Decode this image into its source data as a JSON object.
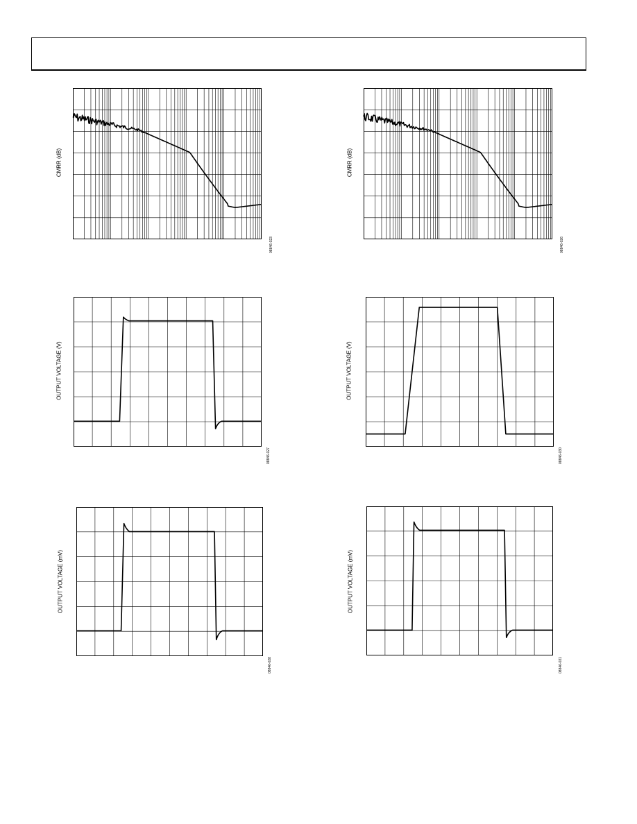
{
  "figures": [
    {
      "id": "cmrr-left",
      "type": "log",
      "ylabel": "CMRR (dB)",
      "code": "08846-023"
    },
    {
      "id": "cmrr-right",
      "type": "log",
      "ylabel": "CMRR (dB)",
      "code": "08846-026"
    },
    {
      "id": "pulse-v-left",
      "type": "pulse",
      "ylabel": "OUTPUT VOLTAGE (V)",
      "code": "08846-027"
    },
    {
      "id": "pulse-v-right",
      "type": "pulse",
      "ylabel": "OUTPUT VOLTAGE (V)",
      "code": "08846-030"
    },
    {
      "id": "pulse-mv-left",
      "type": "pulse",
      "ylabel": "OUTPUT VOLTAGE (mV)",
      "code": "08846-028"
    },
    {
      "id": "pulse-mv-right",
      "type": "pulse",
      "ylabel": "OUTPUT VOLTAGE (mV)",
      "code": "08846-031"
    }
  ],
  "chart_data": [
    {
      "type": "line",
      "title": "",
      "xlabel": "",
      "ylabel": "CMRR (dB)",
      "x_scale": "log",
      "grid": true,
      "series": [
        {
          "shape": "noisy flat then rolloff to floor, slight rise at end"
        }
      ]
    },
    {
      "type": "line",
      "title": "",
      "xlabel": "",
      "ylabel": "CMRR (dB)",
      "x_scale": "log",
      "grid": true,
      "series": [
        {
          "shape": "noisy flat then rolloff to floor, slight rise at end"
        }
      ]
    },
    {
      "type": "line",
      "title": "",
      "xlabel": "",
      "ylabel": "OUTPUT VOLTAGE (V)",
      "grid": true,
      "series": [
        {
          "shape": "pulse with fast edges, small overshoot and undershoot"
        }
      ]
    },
    {
      "type": "line",
      "title": "",
      "xlabel": "",
      "ylabel": "OUTPUT VOLTAGE (V)",
      "grid": true,
      "series": [
        {
          "shape": "pulse with slew-limited edges"
        }
      ]
    },
    {
      "type": "line",
      "title": "",
      "xlabel": "",
      "ylabel": "OUTPUT VOLTAGE (mV)",
      "grid": true,
      "series": [
        {
          "shape": "small-signal pulse with overshoot and undershoot"
        }
      ]
    },
    {
      "type": "line",
      "title": "",
      "xlabel": "",
      "ylabel": "OUTPUT VOLTAGE (mV)",
      "grid": true,
      "series": [
        {
          "shape": "small-signal pulse with overshoot and undershoot"
        }
      ]
    }
  ]
}
